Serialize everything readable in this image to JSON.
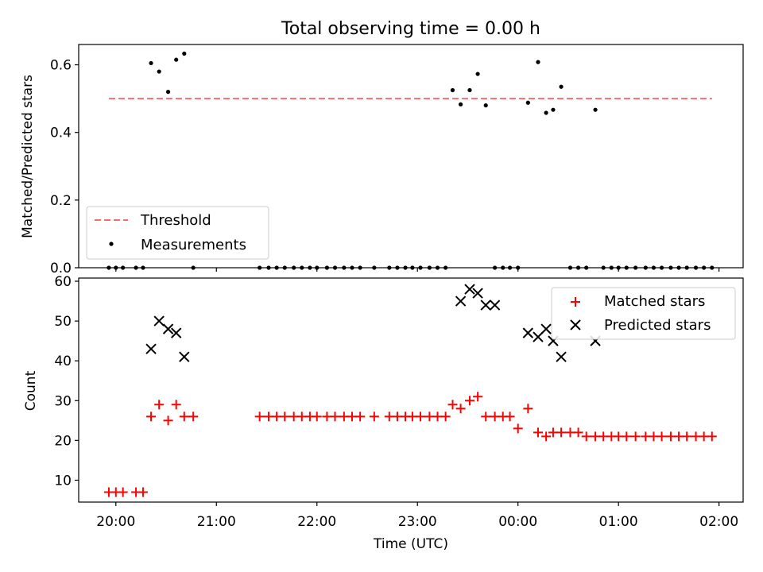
{
  "title": "Total observing time = 0.00 h",
  "xlabel": "Time (UTC)",
  "xticks": [
    "20:00",
    "21:00",
    "22:00",
    "23:00",
    "00:00",
    "01:00",
    "02:00"
  ],
  "colors": {
    "threshold": "#f07070",
    "measurements": "#000000",
    "matched": "#ff0000",
    "predicted": "#000000"
  },
  "chart_data": [
    {
      "type": "scatter",
      "ylabel": "Matched/Predicted stars",
      "ylim": [
        0,
        0.66
      ],
      "yticks": [
        "0.0",
        "0.2",
        "0.4",
        "0.6"
      ],
      "xlim_hours": [
        19.63,
        26.24
      ],
      "legend": {
        "placement": "lower-left",
        "entries": [
          "Threshold",
          "Measurements"
        ]
      },
      "series": [
        {
          "name": "Threshold",
          "kind": "dashed-line",
          "x": [
            19.93,
            25.93
          ],
          "y": [
            0.5,
            0.5
          ]
        },
        {
          "name": "Measurements",
          "kind": "dot",
          "x": [
            19.93,
            20.0,
            20.07,
            20.2,
            20.27,
            20.35,
            20.43,
            20.52,
            20.6,
            20.68,
            20.77,
            21.43,
            21.52,
            21.6,
            21.68,
            21.77,
            21.85,
            21.93,
            22.0,
            22.1,
            22.18,
            22.27,
            22.35,
            22.43,
            22.57,
            22.72,
            22.8,
            22.88,
            22.95,
            23.03,
            23.12,
            23.2,
            23.28,
            23.35,
            23.43,
            23.52,
            23.6,
            23.68,
            23.77,
            23.85,
            23.92,
            24.0,
            24.1,
            24.2,
            24.28,
            24.35,
            24.43,
            24.52,
            24.6,
            24.68,
            24.77,
            24.85,
            24.93,
            25.0,
            25.08,
            25.17,
            25.27,
            25.35,
            25.43,
            25.52,
            25.6,
            25.68,
            25.77,
            25.85,
            25.93
          ],
          "y": [
            0,
            0,
            0,
            0,
            0,
            0.605,
            0.58,
            0.52,
            0.615,
            0.633,
            0,
            0,
            0,
            0,
            0,
            0,
            0,
            0,
            0,
            0,
            0,
            0,
            0,
            0,
            0,
            0,
            0,
            0,
            0,
            0,
            0,
            0,
            0,
            0.525,
            0.483,
            0.525,
            0.573,
            0.48,
            0,
            0,
            0,
            0,
            0.488,
            0.608,
            0.458,
            0.467,
            0.535,
            0,
            0,
            0,
            0.467,
            0,
            0,
            0,
            0,
            0,
            0,
            0,
            0,
            0,
            0,
            0,
            0,
            0,
            0
          ]
        }
      ]
    },
    {
      "type": "scatter",
      "ylabel": "Count",
      "ylim": [
        4.5,
        60.8
      ],
      "yticks": [
        "10",
        "20",
        "30",
        "40",
        "50",
        "60"
      ],
      "xlim_hours": [
        19.63,
        26.24
      ],
      "legend": {
        "placement": "top-right",
        "entries": [
          "Matched stars",
          "Predicted stars"
        ]
      },
      "series": [
        {
          "name": "Matched stars",
          "marker": "plus",
          "x": [
            19.93,
            20.0,
            20.07,
            20.2,
            20.27,
            20.35,
            20.43,
            20.52,
            20.6,
            20.68,
            20.77,
            21.43,
            21.52,
            21.6,
            21.68,
            21.77,
            21.85,
            21.93,
            22.0,
            22.1,
            22.18,
            22.27,
            22.35,
            22.43,
            22.57,
            22.72,
            22.8,
            22.88,
            22.95,
            23.03,
            23.12,
            23.2,
            23.28,
            23.35,
            23.43,
            23.52,
            23.6,
            23.68,
            23.77,
            23.85,
            23.92,
            24.0,
            24.1,
            24.2,
            24.28,
            24.35,
            24.43,
            24.52,
            24.6,
            24.68,
            24.77,
            24.85,
            24.93,
            25.0,
            25.08,
            25.17,
            25.27,
            25.35,
            25.43,
            25.52,
            25.6,
            25.68,
            25.77,
            25.85,
            25.93
          ],
          "y": [
            7,
            7,
            7,
            7,
            7,
            26,
            29,
            25,
            29,
            26,
            26,
            26,
            26,
            26,
            26,
            26,
            26,
            26,
            26,
            26,
            26,
            26,
            26,
            26,
            26,
            26,
            26,
            26,
            26,
            26,
            26,
            26,
            26,
            29,
            28,
            30,
            31,
            26,
            26,
            26,
            26,
            23,
            28,
            22,
            21,
            22,
            22,
            22,
            22,
            21,
            21,
            21,
            21,
            21,
            21,
            21,
            21,
            21,
            21,
            21,
            21,
            21,
            21,
            21,
            21
          ]
        },
        {
          "name": "Predicted stars",
          "marker": "x",
          "x": [
            20.35,
            20.43,
            20.52,
            20.6,
            20.68,
            23.43,
            23.52,
            23.6,
            23.68,
            23.77,
            24.1,
            24.2,
            24.28,
            24.35,
            24.43,
            24.77
          ],
          "y": [
            43,
            50,
            48,
            47,
            41,
            55,
            58,
            57,
            54,
            54,
            47,
            46,
            48,
            45,
            41,
            45
          ]
        }
      ]
    }
  ]
}
